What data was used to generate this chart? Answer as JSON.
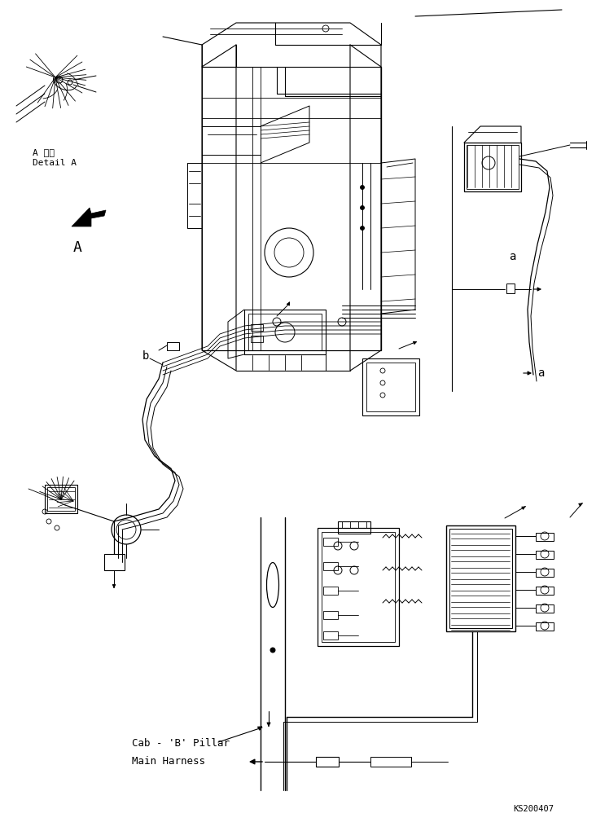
{
  "bg_color": "#ffffff",
  "line_color": "#000000",
  "detail_text1": "A 詳細",
  "detail_text2": "Detail A",
  "label_a": "a",
  "label_b": "b",
  "label_A": "A",
  "cab_label": "Cab - 'B' Pillar",
  "harness_label": "Main Harness",
  "watermark": "KS200407",
  "fig_width": 7.32,
  "fig_height": 10.09,
  "dpi": 100
}
